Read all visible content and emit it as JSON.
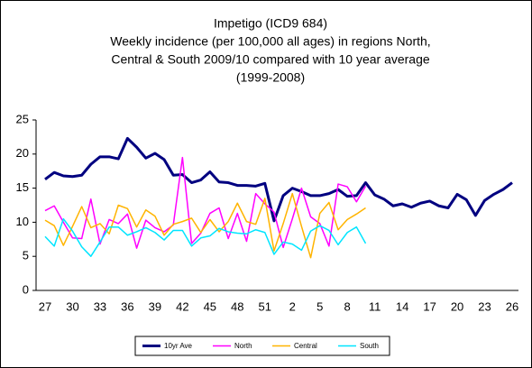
{
  "chart_data": {
    "type": "line",
    "title": "Impetigo (ICD9 684)",
    "subtitle": [
      "Weekly incidence  (per 100,000  all ages)  in regions  North,",
      "Central & South 2009/10  compared with 10 year average",
      "(1999-2008)"
    ],
    "categories": [
      27,
      null,
      null,
      30,
      null,
      null,
      33,
      null,
      null,
      36,
      null,
      null,
      39,
      null,
      null,
      42,
      null,
      null,
      45,
      null,
      null,
      48,
      null,
      null,
      51,
      null,
      null,
      2,
      null,
      null,
      5,
      null,
      null,
      8,
      null,
      null,
      11,
      null,
      null,
      14,
      null,
      null,
      17,
      null,
      null,
      20,
      null,
      null,
      23,
      null,
      null,
      26
    ],
    "series": [
      {
        "name": "10yr Ave",
        "color": "#000080",
        "values": [
          16.3,
          17.3,
          16.8,
          16.7,
          16.9,
          18.5,
          19.6,
          19.6,
          19.3,
          22.3,
          21,
          19.4,
          20.1,
          19.2,
          16.9,
          17,
          15.8,
          16.2,
          17.4,
          15.9,
          15.8,
          15.4,
          15.4,
          15.3,
          15.7,
          10.2,
          13.9,
          15,
          14.5,
          13.9,
          13.9,
          14.2,
          14.8,
          13.8,
          13.9,
          15.8,
          14,
          13.4,
          12.4,
          12.7,
          12.2,
          12.8,
          13.1,
          12.4,
          12.1,
          14.1,
          13.3,
          11,
          13.2,
          14.1,
          14.8,
          15.8
        ]
      },
      {
        "name": "North",
        "color": "#ff00ff",
        "values": [
          11.7,
          12.4,
          10,
          7.7,
          7.6,
          13.4,
          6.8,
          10.4,
          9.8,
          11.2,
          6.2,
          10.3,
          9.2,
          8.6,
          9.6,
          19.5,
          6.9,
          8.4,
          11.3,
          12.1,
          7.6,
          11.3,
          7.2,
          14.2,
          12.7,
          11.5,
          6.3,
          10.5,
          15,
          10.8,
          9.8,
          6.5,
          15.6,
          15.2,
          13,
          15.3,
          null,
          null,
          null,
          null,
          null,
          null,
          null,
          null,
          null,
          null,
          null,
          null,
          null,
          null,
          null,
          null
        ]
      },
      {
        "name": "Central",
        "color": "#ffb400",
        "values": [
          10.3,
          9.5,
          6.6,
          9.4,
          12.3,
          9.2,
          9.8,
          8.3,
          12.5,
          12,
          9.3,
          11.8,
          10.9,
          8.1,
          9.7,
          10.1,
          10.6,
          8.5,
          10.4,
          8.6,
          10.1,
          12.8,
          10.1,
          9.7,
          13.5,
          5.8,
          9.8,
          14.2,
          9.4,
          4.8,
          11.3,
          12.9,
          8.9,
          10.4,
          11.2,
          12.1,
          null,
          null,
          null,
          null,
          null,
          null,
          null,
          null,
          null,
          null,
          null,
          null,
          null,
          null,
          null,
          null
        ]
      },
      {
        "name": "South",
        "color": "#00e5ff",
        "values": [
          7.9,
          6.5,
          10.5,
          8.7,
          6.4,
          5,
          7.1,
          9.3,
          9.3,
          8.1,
          8.6,
          9.2,
          8.5,
          7.4,
          8.8,
          8.8,
          6.5,
          7.7,
          8,
          9.1,
          8.6,
          8.4,
          8.3,
          8.9,
          8.5,
          5.3,
          7.1,
          6.8,
          5.9,
          8.7,
          9.5,
          8.8,
          6.7,
          8.5,
          9.3,
          6.9,
          null,
          null,
          null,
          null,
          null,
          null,
          null,
          null,
          null,
          null,
          null,
          null,
          null,
          null,
          null,
          null
        ]
      }
    ],
    "ylim": [
      0,
      25
    ],
    "yticks": [
      0,
      5,
      10,
      15,
      20,
      25
    ],
    "grid": false,
    "legend": "bottom"
  }
}
